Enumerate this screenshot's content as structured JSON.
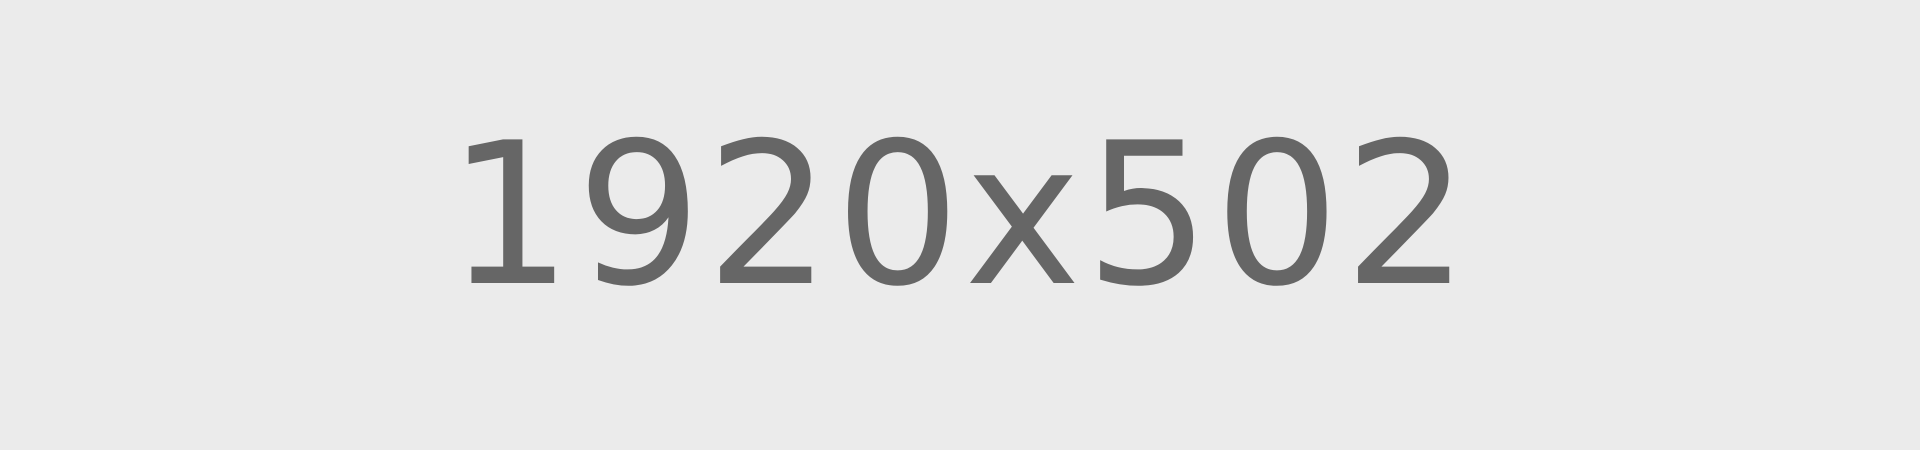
{
  "placeholder": {
    "label": "1920x502",
    "background_color": "#ebebeb",
    "text_color": "#666666"
  }
}
